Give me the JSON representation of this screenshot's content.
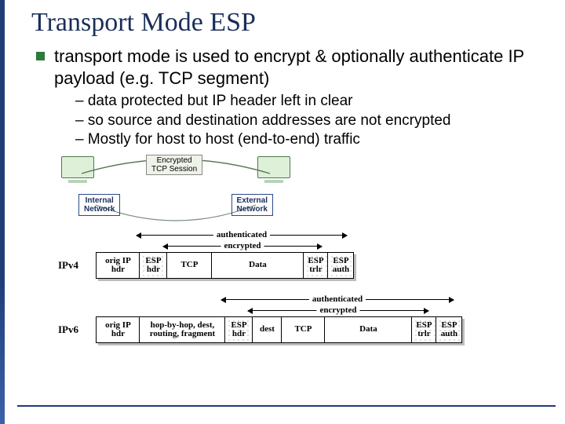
{
  "title": "Transport Mode ESP",
  "main_bullet": "transport mode is used to encrypt & optionally authenticate IP payload (e.g. TCP segment)",
  "subs": {
    "a": "data protected but IP header left in clear",
    "b": "so source and destination addresses are not encrypted",
    "c": "Mostly for host to host (end-to-end) traffic"
  },
  "net": {
    "arc_label_l1": "Encrypted",
    "arc_label_l2": "TCP Session",
    "internal": "Internal\nNetwork",
    "external": "External\nNetwork"
  },
  "span_labels": {
    "auth": "authenticated",
    "enc": "encrypted"
  },
  "ipv4": {
    "label": "IPv4",
    "cells": {
      "c0": "orig IP\nhdr",
      "c1": "ESP\nhdr",
      "c2": "TCP",
      "c3": "Data",
      "c4": "ESP\ntrlr",
      "c5": "ESP\nauth"
    },
    "widths": [
      54,
      34,
      56,
      116,
      30,
      32
    ],
    "shaded": [
      false,
      true,
      false,
      false,
      true,
      true
    ],
    "enc_start_idx": 2,
    "enc_end_idx": 4,
    "auth_start_idx": 1,
    "auth_end_idx": 5
  },
  "ipv6": {
    "label": "IPv6",
    "cells": {
      "c0": "orig IP\nhdr",
      "c1": "hop-by-hop, dest,\nrouting, fragment",
      "c2": "ESP\nhdr",
      "c3": "dest",
      "c4": "TCP",
      "c5": "Data",
      "c6": "ESP\ntrlr",
      "c7": "ESP\nauth"
    },
    "widths": [
      54,
      108,
      34,
      36,
      54,
      110,
      30,
      32
    ],
    "shaded": [
      false,
      false,
      true,
      false,
      false,
      false,
      true,
      true
    ],
    "enc_start_idx": 3,
    "enc_end_idx": 6,
    "auth_start_idx": 2,
    "auth_end_idx": 7
  },
  "colors": {
    "title": "#1a2e5a",
    "bullet": "#2e7a3a",
    "accent": "#1f3c78"
  }
}
